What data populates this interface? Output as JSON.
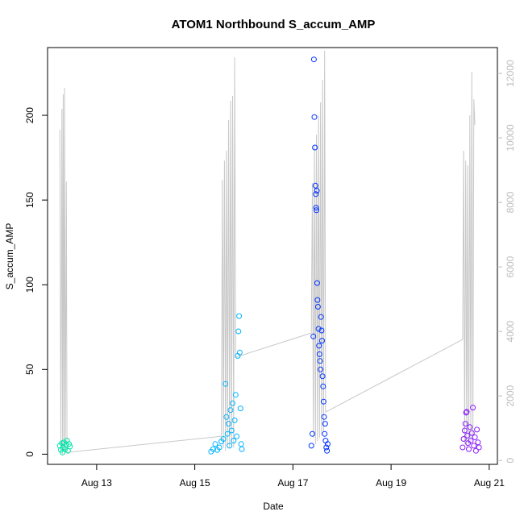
{
  "chart_data": {
    "type": "scatter",
    "title": "ATOM1 Northbound S_accum_AMP",
    "xlabel": "Date",
    "ylabel": "S_accum_AMP",
    "x_unit": "date",
    "xlim": [
      "2023-08-12T00:00",
      "2023-08-21T04:00"
    ],
    "ylim": [
      -6,
      240
    ],
    "y2lim": [
      -120,
      12800
    ],
    "x_ticks": [
      {
        "date": "2023-08-13T00:00",
        "label": "Aug 13"
      },
      {
        "date": "2023-08-15T00:00",
        "label": "Aug 15"
      },
      {
        "date": "2023-08-17T00:00",
        "label": "Aug 17"
      },
      {
        "date": "2023-08-19T00:00",
        "label": "Aug 19"
      },
      {
        "date": "2023-08-21T00:00",
        "label": "Aug 21"
      }
    ],
    "y_ticks": [
      0,
      50,
      100,
      150,
      200
    ],
    "y2_ticks": [
      0,
      2000,
      4000,
      6000,
      8000,
      10000,
      12000
    ],
    "colors": {
      "points_early": "#00e5a8",
      "points_mid": "#00b4ff",
      "points_later": "#0033ff",
      "points_last": "#8a1cff",
      "secondary_line": "#c8c8c8",
      "secondary_axis": "#bdbdbd"
    },
    "points": [
      {
        "x": "2023-08-12T06:00",
        "y": 5.0
      },
      {
        "x": "2023-08-12T06:30",
        "y": 2.5
      },
      {
        "x": "2023-08-12T07:00",
        "y": 6.5
      },
      {
        "x": "2023-08-12T07:20",
        "y": 1.0
      },
      {
        "x": "2023-08-12T07:40",
        "y": 4.0
      },
      {
        "x": "2023-08-12T08:00",
        "y": 7.0
      },
      {
        "x": "2023-08-12T08:30",
        "y": 3.0
      },
      {
        "x": "2023-08-12T09:00",
        "y": 5.5
      },
      {
        "x": "2023-08-12T09:30",
        "y": 8.0
      },
      {
        "x": "2023-08-12T10:00",
        "y": 2.0
      },
      {
        "x": "2023-08-12T10:30",
        "y": 6.0
      },
      {
        "x": "2023-08-12T11:00",
        "y": 4.5
      },
      {
        "x": "2023-08-15T08:00",
        "y": 1.5
      },
      {
        "x": "2023-08-15T09:00",
        "y": 3.0
      },
      {
        "x": "2023-08-15T10:00",
        "y": 6.0
      },
      {
        "x": "2023-08-15T11:00",
        "y": 2.5
      },
      {
        "x": "2023-08-15T12:00",
        "y": 4.0
      },
      {
        "x": "2023-08-15T13:00",
        "y": 7.5
      },
      {
        "x": "2023-08-15T14:00",
        "y": 9.0
      },
      {
        "x": "2023-08-15T15:00",
        "y": 41.5
      },
      {
        "x": "2023-08-15T15:30",
        "y": 22.0
      },
      {
        "x": "2023-08-15T16:00",
        "y": 12.0
      },
      {
        "x": "2023-08-15T16:30",
        "y": 18.0
      },
      {
        "x": "2023-08-15T17:00",
        "y": 5.0
      },
      {
        "x": "2023-08-15T17:30",
        "y": 26.0
      },
      {
        "x": "2023-08-15T18:00",
        "y": 14.0
      },
      {
        "x": "2023-08-15T18:30",
        "y": 30.0
      },
      {
        "x": "2023-08-15T19:00",
        "y": 8.0
      },
      {
        "x": "2023-08-15T19:30",
        "y": 20.0
      },
      {
        "x": "2023-08-15T20:00",
        "y": 35.0
      },
      {
        "x": "2023-08-15T20:30",
        "y": 10.5
      },
      {
        "x": "2023-08-15T21:00",
        "y": 58.0
      },
      {
        "x": "2023-08-15T21:20",
        "y": 72.5
      },
      {
        "x": "2023-08-15T21:40",
        "y": 81.5
      },
      {
        "x": "2023-08-15T22:00",
        "y": 60.0
      },
      {
        "x": "2023-08-15T22:20",
        "y": 27.0
      },
      {
        "x": "2023-08-15T22:40",
        "y": 6.0
      },
      {
        "x": "2023-08-15T23:00",
        "y": 3.0
      },
      {
        "x": "2023-08-17T09:00",
        "y": 5.0
      },
      {
        "x": "2023-08-17T09:30",
        "y": 12.0
      },
      {
        "x": "2023-08-17T10:00",
        "y": 69.5
      },
      {
        "x": "2023-08-17T10:15",
        "y": 233.0
      },
      {
        "x": "2023-08-17T10:30",
        "y": 199.0
      },
      {
        "x": "2023-08-17T10:45",
        "y": 181.0
      },
      {
        "x": "2023-08-17T11:00",
        "y": 158.5
      },
      {
        "x": "2023-08-17T11:10",
        "y": 153.5
      },
      {
        "x": "2023-08-17T11:20",
        "y": 145.5
      },
      {
        "x": "2023-08-17T11:30",
        "y": 144.0
      },
      {
        "x": "2023-08-17T11:40",
        "y": 155.5
      },
      {
        "x": "2023-08-17T11:50",
        "y": 101.0
      },
      {
        "x": "2023-08-17T12:00",
        "y": 91.0
      },
      {
        "x": "2023-08-17T12:15",
        "y": 87.0
      },
      {
        "x": "2023-08-17T12:30",
        "y": 74.0
      },
      {
        "x": "2023-08-17T12:45",
        "y": 64.0
      },
      {
        "x": "2023-08-17T13:00",
        "y": 59.0
      },
      {
        "x": "2023-08-17T13:15",
        "y": 55.0
      },
      {
        "x": "2023-08-17T13:30",
        "y": 50.0
      },
      {
        "x": "2023-08-17T13:45",
        "y": 81.0
      },
      {
        "x": "2023-08-17T14:00",
        "y": 73.0
      },
      {
        "x": "2023-08-17T14:15",
        "y": 67.0
      },
      {
        "x": "2023-08-17T14:30",
        "y": 46.0
      },
      {
        "x": "2023-08-17T14:45",
        "y": 40.0
      },
      {
        "x": "2023-08-17T15:00",
        "y": 31.0
      },
      {
        "x": "2023-08-17T15:15",
        "y": 22.0
      },
      {
        "x": "2023-08-17T15:30",
        "y": 12.0
      },
      {
        "x": "2023-08-17T15:45",
        "y": 18.0
      },
      {
        "x": "2023-08-17T16:00",
        "y": 8.0
      },
      {
        "x": "2023-08-17T16:20",
        "y": 4.0
      },
      {
        "x": "2023-08-17T16:40",
        "y": 2.0
      },
      {
        "x": "2023-08-17T17:00",
        "y": 6.0
      },
      {
        "x": "2023-08-20T11:00",
        "y": 4.0
      },
      {
        "x": "2023-08-20T11:30",
        "y": 9.0
      },
      {
        "x": "2023-08-20T12:00",
        "y": 14.0
      },
      {
        "x": "2023-08-20T12:20",
        "y": 18.0
      },
      {
        "x": "2023-08-20T12:40",
        "y": 24.5
      },
      {
        "x": "2023-08-20T13:00",
        "y": 25.0
      },
      {
        "x": "2023-08-20T13:20",
        "y": 11.0
      },
      {
        "x": "2023-08-20T13:40",
        "y": 6.5
      },
      {
        "x": "2023-08-20T14:00",
        "y": 3.0
      },
      {
        "x": "2023-08-20T14:30",
        "y": 16.0
      },
      {
        "x": "2023-08-20T15:00",
        "y": 8.0
      },
      {
        "x": "2023-08-20T15:30",
        "y": 12.5
      },
      {
        "x": "2023-08-20T16:00",
        "y": 27.5
      },
      {
        "x": "2023-08-20T16:30",
        "y": 5.0
      },
      {
        "x": "2023-08-20T17:00",
        "y": 10.0
      },
      {
        "x": "2023-08-20T17:30",
        "y": 2.0
      },
      {
        "x": "2023-08-20T18:00",
        "y": 14.5
      },
      {
        "x": "2023-08-20T18:30",
        "y": 7.0
      },
      {
        "x": "2023-08-20T19:00",
        "y": 4.0
      }
    ],
    "secondary_series": [
      {
        "x": "2023-08-12T06:00",
        "y2": 10250
      },
      {
        "x": "2023-08-12T06:30",
        "y2": 300
      },
      {
        "x": "2023-08-12T07:00",
        "y2": 10900
      },
      {
        "x": "2023-08-12T07:20",
        "y2": 200
      },
      {
        "x": "2023-08-12T07:40",
        "y2": 11350
      },
      {
        "x": "2023-08-12T08:00",
        "y2": 300
      },
      {
        "x": "2023-08-12T08:20",
        "y2": 11550
      },
      {
        "x": "2023-08-12T08:40",
        "y2": 250
      },
      {
        "x": "2023-08-12T09:10",
        "y2": 8650
      },
      {
        "x": "2023-08-12T09:30",
        "y2": 250
      },
      {
        "x": "2023-08-15T13:00",
        "y2": 750
      },
      {
        "x": "2023-08-15T13:30",
        "y2": 8700
      },
      {
        "x": "2023-08-15T14:00",
        "y2": 400
      },
      {
        "x": "2023-08-15T14:30",
        "y2": 9300
      },
      {
        "x": "2023-08-15T15:00",
        "y2": 300
      },
      {
        "x": "2023-08-15T15:30",
        "y2": 9600
      },
      {
        "x": "2023-08-15T16:00",
        "y2": 500
      },
      {
        "x": "2023-08-15T16:30",
        "y2": 10550
      },
      {
        "x": "2023-08-15T17:00",
        "y2": 400
      },
      {
        "x": "2023-08-15T17:30",
        "y2": 11150
      },
      {
        "x": "2023-08-15T18:00",
        "y2": 500
      },
      {
        "x": "2023-08-15T18:30",
        "y2": 11300
      },
      {
        "x": "2023-08-15T19:00",
        "y2": 400
      },
      {
        "x": "2023-08-15T19:30",
        "y2": 12500
      },
      {
        "x": "2023-08-15T20:00",
        "y2": 3200
      },
      {
        "x": "2023-08-17T09:00",
        "y2": 3950
      },
      {
        "x": "2023-08-17T09:30",
        "y2": 8600
      },
      {
        "x": "2023-08-17T10:00",
        "y2": 700
      },
      {
        "x": "2023-08-17T10:30",
        "y2": 9750
      },
      {
        "x": "2023-08-17T11:00",
        "y2": 500
      },
      {
        "x": "2023-08-17T11:30",
        "y2": 10100
      },
      {
        "x": "2023-08-17T12:00",
        "y2": 600
      },
      {
        "x": "2023-08-17T12:30",
        "y2": 10700
      },
      {
        "x": "2023-08-17T13:00",
        "y2": 700
      },
      {
        "x": "2023-08-17T13:30",
        "y2": 11100
      },
      {
        "x": "2023-08-17T14:00",
        "y2": 800
      },
      {
        "x": "2023-08-17T14:30",
        "y2": 11800
      },
      {
        "x": "2023-08-17T15:00",
        "y2": 900
      },
      {
        "x": "2023-08-17T15:30",
        "y2": 12700
      },
      {
        "x": "2023-08-17T16:00",
        "y2": 1500
      },
      {
        "x": "2023-08-20T11:00",
        "y2": 3750
      },
      {
        "x": "2023-08-20T11:30",
        "y2": 9600
      },
      {
        "x": "2023-08-20T12:00",
        "y2": 500
      },
      {
        "x": "2023-08-20T12:30",
        "y2": 9300
      },
      {
        "x": "2023-08-20T13:00",
        "y2": 400
      },
      {
        "x": "2023-08-20T13:30",
        "y2": 9150
      },
      {
        "x": "2023-08-20T14:00",
        "y2": 500
      },
      {
        "x": "2023-08-20T14:30",
        "y2": 10700
      },
      {
        "x": "2023-08-20T15:00",
        "y2": 600
      },
      {
        "x": "2023-08-20T15:30",
        "y2": 12050
      },
      {
        "x": "2023-08-20T16:00",
        "y2": 700
      },
      {
        "x": "2023-08-20T16:30",
        "y2": 11200
      },
      {
        "x": "2023-08-20T17:00",
        "y2": 10400
      }
    ]
  }
}
